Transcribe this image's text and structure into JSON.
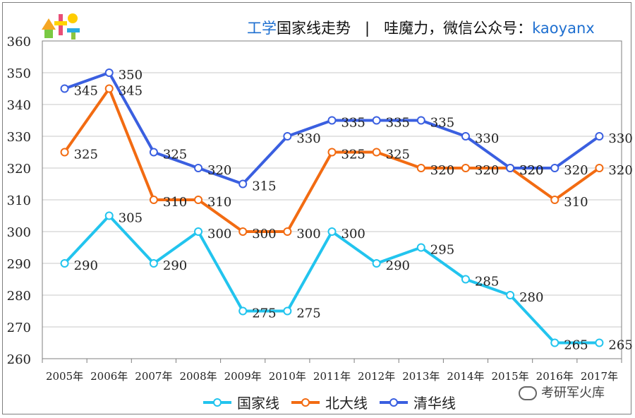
{
  "header": {
    "title_accent": "工学",
    "title_rest": "国家线走势",
    "separator": "|",
    "source": "哇魔力，微信公众号：",
    "handle": "kaoyanx"
  },
  "watermark": {
    "text": "考研军火库",
    "icon": "wechat-icon"
  },
  "colors": {
    "national": "#22c4ee",
    "pku": "#f26b12",
    "tsinghua": "#3a5fe0",
    "grid": "#c8c8c8",
    "axis": "#7f7f7f"
  },
  "chart_data": {
    "type": "line",
    "title": "工学国家线走势",
    "xlabel": "",
    "ylabel": "",
    "categories": [
      "2005年",
      "2006年",
      "2007年",
      "2008年",
      "2009年",
      "2010年",
      "2011年",
      "2012年",
      "2013年",
      "2014年",
      "2015年",
      "2016年",
      "2017年"
    ],
    "ylim": [
      260,
      360
    ],
    "yticks": [
      260,
      270,
      280,
      290,
      300,
      310,
      320,
      330,
      340,
      350,
      360
    ],
    "grid": true,
    "legend_position": "bottom",
    "series": [
      {
        "name": "国家线",
        "key": "national",
        "values": [
          290,
          305,
          290,
          300,
          275,
          275,
          300,
          290,
          295,
          285,
          280,
          265,
          265
        ]
      },
      {
        "name": "北大线",
        "key": "pku",
        "values": [
          325,
          345,
          310,
          310,
          300,
          300,
          325,
          325,
          320,
          320,
          320,
          310,
          320
        ]
      },
      {
        "name": "清华线",
        "key": "tsinghua",
        "values": [
          345,
          350,
          325,
          320,
          315,
          330,
          335,
          335,
          335,
          330,
          320,
          320,
          330
        ]
      }
    ]
  }
}
